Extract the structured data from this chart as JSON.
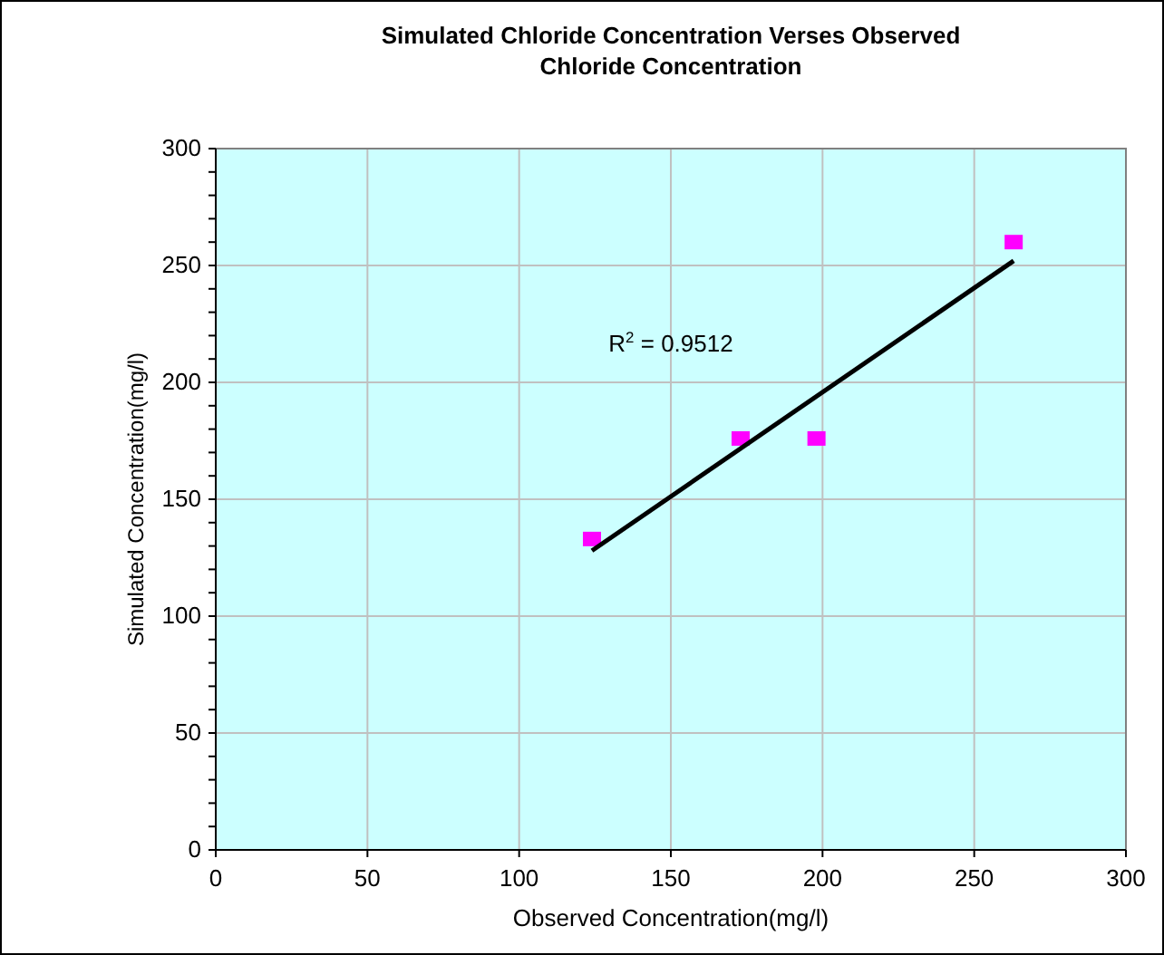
{
  "chart_data": {
    "type": "scatter",
    "title": "Simulated Chloride Concentration Verses Observed Chloride Concentration",
    "xlabel": "Observed Concentration(mg/l)",
    "ylabel": "Simulated Concentration(mg/l)",
    "x": [
      124,
      173,
      198,
      263
    ],
    "series": [
      {
        "color": "#ff00ff",
        "marker": "square",
        "values": [
          133,
          176,
          176,
          260
        ]
      },
      {
        "type": "line",
        "color": "#000000",
        "x": [
          124,
          263
        ],
        "values": [
          128,
          252
        ]
      }
    ],
    "annotations": [
      "R$^{2}$ = 0.9512"
    ],
    "xlim": [
      0,
      300
    ],
    "xticks": [
      0,
      50,
      100,
      150,
      200,
      250,
      300
    ],
    "ylim": [
      0,
      300
    ],
    "yticks": [
      0,
      {
        "value": 10,
        "label": null
      },
      {
        "value": 20,
        "label": null
      },
      {
        "value": 30,
        "label": null
      },
      {
        "value": 40,
        "label": null
      },
      50,
      {
        "value": 60,
        "label": null
      },
      {
        "value": 70,
        "label": null
      },
      {
        "value": 80,
        "label": null
      },
      {
        "value": 90,
        "label": null
      },
      100,
      {
        "value": 110,
        "label": null
      },
      {
        "value": 120,
        "label": null
      },
      {
        "value": 130,
        "label": null
      },
      {
        "value": 140,
        "label": null
      },
      150,
      {
        "value": 160,
        "label": null
      },
      {
        "value": 170,
        "label": null
      },
      {
        "value": 180,
        "label": null
      },
      {
        "value": 190,
        "label": null
      },
      200,
      {
        "value": 210,
        "label": null
      },
      {
        "value": 220,
        "label": null
      },
      {
        "value": 230,
        "label": null
      },
      {
        "value": 240,
        "label": null
      },
      250,
      {
        "value": 260,
        "label": null
      },
      {
        "value": 270,
        "label": null
      },
      {
        "value": 280,
        "label": null
      },
      {
        "value": 290,
        "label": null
      },
      300
    ],
    "grid": true
  }
}
